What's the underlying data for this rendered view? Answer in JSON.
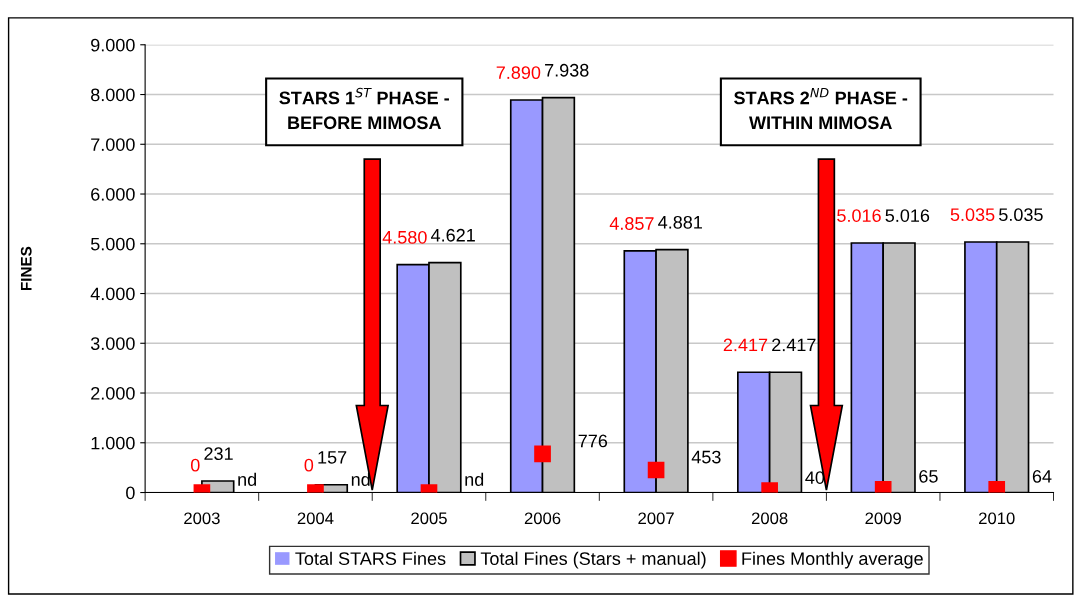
{
  "chart_data": {
    "type": "bar",
    "ylabel": "FINES",
    "categories": [
      "2003",
      "2004",
      "2005",
      "2006",
      "2007",
      "2008",
      "2009",
      "2010"
    ],
    "series": [
      {
        "name": "Total STARS Fines",
        "color": "#9999ff",
        "values": [
          0,
          0,
          4580,
          7890,
          4857,
          2417,
          5016,
          5035
        ],
        "value_labels": [
          "0",
          "0",
          "4.580",
          "7.890",
          "4.857",
          "2.417",
          "5.016",
          "5.035"
        ]
      },
      {
        "name": "Total Fines (Stars + manual)",
        "color": "#c0c0c0",
        "values": [
          231,
          157,
          4621,
          7938,
          4881,
          2417,
          5016,
          5035
        ],
        "value_labels": [
          "231",
          "157",
          "4.621",
          "7.938",
          "4.881",
          "2.417",
          "5.016",
          "5.035"
        ]
      },
      {
        "name": "Fines Monthly average",
        "type": "scatter",
        "color": "#ff0000",
        "marker": "square",
        "values": [
          0,
          0,
          0,
          776,
          453,
          40,
          65,
          64
        ],
        "value_labels": [
          "nd",
          "nd",
          "nd",
          "776",
          "453",
          "40",
          "65",
          "64"
        ]
      }
    ],
    "ylim": [
      0,
      9000
    ],
    "yticks": [
      {
        "value": 0,
        "label": "0"
      },
      {
        "value": 1000,
        "label": "1.000"
      },
      {
        "value": 2000,
        "label": "2.000"
      },
      {
        "value": 3000,
        "label": "3.000"
      },
      {
        "value": 4000,
        "label": "4.000"
      },
      {
        "value": 5000,
        "label": "5.000"
      },
      {
        "value": 6000,
        "label": "6.000"
      },
      {
        "value": 7000,
        "label": "7.000"
      },
      {
        "value": 8000,
        "label": "8.000"
      },
      {
        "value": 9000,
        "label": "9.000"
      }
    ],
    "grid": "y",
    "legend": "bottom",
    "annotations": [
      "STARS 1$^{ST}$ PHASE -\nBEFORE MIMOSA",
      "STARS 2$^{ND}$ PHASE -\nWITHIN MIMOSA"
    ]
  }
}
